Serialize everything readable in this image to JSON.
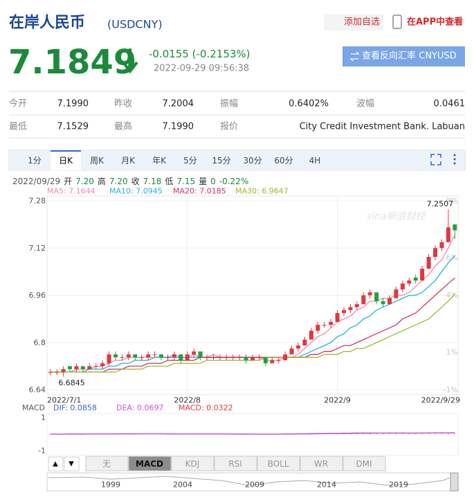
{
  "header": {
    "title": "在岸人民币",
    "code": "(USDCNY)",
    "add_watchlist": "添加自选",
    "app_view": "在APP中查看"
  },
  "quote": {
    "price": "7.1849",
    "change": "-0.0155 (-0.2153%)",
    "time": "2022-09-29 09:56:38",
    "reverse_button": "查看反向汇率 CNYUSD"
  },
  "stats": [
    [
      {
        "label": "今开",
        "value": "7.1990"
      },
      {
        "label": "昨收",
        "value": "7.2004"
      },
      {
        "label": "振幅",
        "value": "0.6402%"
      },
      {
        "label": "波幅",
        "value": "0.0461"
      }
    ],
    [
      {
        "label": "最低",
        "value": "7.1529"
      },
      {
        "label": "最高",
        "value": "7.1990"
      },
      {
        "label": "报价",
        "value": "City Credit Investment Bank. Labuan"
      }
    ]
  ],
  "period_tabs": {
    "items": [
      "1分",
      "日K",
      "周K",
      "月K",
      "年K",
      "5分",
      "15分",
      "30分",
      "60分",
      "4H"
    ],
    "active": 1
  },
  "info_bar": {
    "date": "2022/09/29",
    "items": [
      {
        "label": "开",
        "value": "7.20"
      },
      {
        "label": "高",
        "value": "7.20"
      },
      {
        "label": "收",
        "value": "7.18"
      },
      {
        "label": "低",
        "value": "7.15"
      },
      {
        "label": "量",
        "value": "0"
      }
    ],
    "change": "-0.22%"
  },
  "watermark": "sina新浪财经",
  "chart_data": [
    {
      "type": "candlestick",
      "categories": [
        "2022/7/1",
        null,
        null,
        null,
        null,
        null,
        null,
        null,
        null,
        null,
        null,
        null,
        null,
        null,
        null,
        null,
        null,
        null,
        null,
        null,
        null,
        "2022/8",
        null,
        null,
        null,
        null,
        null,
        null,
        null,
        null,
        null,
        null,
        null,
        null,
        null,
        null,
        null,
        null,
        null,
        null,
        null,
        null,
        null,
        null,
        "2022/9",
        null,
        null,
        null,
        null,
        null,
        null,
        null,
        null,
        null,
        null,
        null,
        null,
        null,
        null,
        null,
        null,
        null,
        "2022/9/29"
      ],
      "candles": [
        [
          6.7,
          6.71,
          6.69,
          6.7
        ],
        [
          6.7,
          6.71,
          6.69,
          6.7
        ],
        [
          6.7,
          6.72,
          6.6845,
          6.71
        ],
        [
          6.72,
          6.72,
          6.7,
          6.71
        ],
        [
          6.71,
          6.73,
          6.7,
          6.72
        ],
        [
          6.72,
          6.72,
          6.7,
          6.71
        ],
        [
          6.71,
          6.73,
          6.71,
          6.72
        ],
        [
          6.72,
          6.73,
          6.71,
          6.72
        ],
        [
          6.72,
          6.74,
          6.71,
          6.73
        ],
        [
          6.73,
          6.77,
          6.72,
          6.76
        ],
        [
          6.76,
          6.77,
          6.74,
          6.75
        ],
        [
          6.75,
          6.76,
          6.74,
          6.75
        ],
        [
          6.75,
          6.77,
          6.74,
          6.76
        ],
        [
          6.76,
          6.76,
          6.74,
          6.75
        ],
        [
          6.75,
          6.76,
          6.74,
          6.75
        ],
        [
          6.75,
          6.77,
          6.74,
          6.76
        ],
        [
          6.76,
          6.77,
          6.75,
          6.76
        ],
        [
          6.76,
          6.76,
          6.74,
          6.75
        ],
        [
          6.75,
          6.76,
          6.74,
          6.75
        ],
        [
          6.75,
          6.77,
          6.74,
          6.76
        ],
        [
          6.76,
          6.76,
          6.73,
          6.74
        ],
        [
          6.74,
          6.77,
          6.74,
          6.76
        ],
        [
          6.76,
          6.78,
          6.75,
          6.77
        ],
        [
          6.77,
          6.77,
          6.74,
          6.75
        ],
        [
          6.75,
          6.76,
          6.74,
          6.75
        ],
        [
          6.75,
          6.76,
          6.74,
          6.75
        ],
        [
          6.75,
          6.76,
          6.74,
          6.75
        ],
        [
          6.75,
          6.76,
          6.74,
          6.75
        ],
        [
          6.75,
          6.76,
          6.74,
          6.75
        ],
        [
          6.75,
          6.76,
          6.74,
          6.75
        ],
        [
          6.75,
          6.76,
          6.73,
          6.74
        ],
        [
          6.74,
          6.76,
          6.74,
          6.75
        ],
        [
          6.75,
          6.76,
          6.74,
          6.75
        ],
        [
          6.75,
          6.75,
          6.72,
          6.73
        ],
        [
          6.73,
          6.75,
          6.73,
          6.74
        ],
        [
          6.74,
          6.75,
          6.73,
          6.74
        ],
        [
          6.74,
          6.77,
          6.74,
          6.76
        ],
        [
          6.76,
          6.79,
          6.76,
          6.78
        ],
        [
          6.78,
          6.8,
          6.77,
          6.79
        ],
        [
          6.79,
          6.82,
          6.79,
          6.81
        ],
        [
          6.81,
          6.85,
          6.81,
          6.84
        ],
        [
          6.84,
          6.87,
          6.83,
          6.86
        ],
        [
          6.86,
          6.87,
          6.85,
          6.86
        ],
        [
          6.86,
          6.88,
          6.85,
          6.87
        ],
        [
          6.87,
          6.91,
          6.87,
          6.9
        ],
        [
          6.9,
          6.92,
          6.89,
          6.91
        ],
        [
          6.91,
          6.93,
          6.9,
          6.92
        ],
        [
          6.92,
          6.94,
          6.91,
          6.93
        ],
        [
          6.93,
          6.97,
          6.93,
          6.96
        ],
        [
          6.96,
          6.98,
          6.95,
          6.97
        ],
        [
          6.97,
          6.97,
          6.93,
          6.94
        ],
        [
          6.94,
          6.95,
          6.92,
          6.93
        ],
        [
          6.93,
          6.96,
          6.93,
          6.95
        ],
        [
          6.95,
          6.99,
          6.95,
          6.98
        ],
        [
          6.98,
          7.01,
          6.97,
          7.0
        ],
        [
          7.0,
          7.02,
          6.99,
          7.01
        ],
        [
          7.02,
          7.03,
          7.0,
          7.01
        ],
        [
          7.01,
          7.06,
          7.01,
          7.05
        ],
        [
          7.05,
          7.1,
          7.05,
          7.09
        ],
        [
          7.09,
          7.13,
          7.08,
          7.12
        ],
        [
          7.12,
          7.15,
          7.11,
          7.14
        ],
        [
          7.14,
          7.2507,
          7.14,
          7.19
        ],
        [
          7.2,
          7.2,
          7.15,
          7.18
        ]
      ],
      "up_color": "#e0383e",
      "down_color": "#1fa33a",
      "series": [
        {
          "name": "MA5: 7.1644",
          "color": "#ec8ab0",
          "values": [
            6.7,
            6.7,
            6.7,
            6.7,
            6.71,
            6.71,
            6.71,
            6.72,
            6.72,
            6.73,
            6.74,
            6.74,
            6.75,
            6.75,
            6.75,
            6.75,
            6.75,
            6.75,
            6.75,
            6.76,
            6.75,
            6.75,
            6.76,
            6.75,
            6.75,
            6.76,
            6.75,
            6.75,
            6.75,
            6.75,
            6.75,
            6.75,
            6.75,
            6.74,
            6.74,
            6.74,
            6.75,
            6.75,
            6.76,
            6.78,
            6.8,
            6.82,
            6.83,
            6.85,
            6.87,
            6.88,
            6.89,
            6.91,
            6.92,
            6.94,
            6.94,
            6.95,
            6.95,
            6.96,
            6.96,
            6.97,
            6.99,
            7.01,
            7.03,
            7.06,
            7.08,
            7.12,
            7.1644
          ]
        },
        {
          "name": "MA10: 7.0945",
          "color": "#23b4d2",
          "values": [
            6.7,
            6.7,
            6.7,
            6.7,
            6.7,
            6.7,
            6.71,
            6.71,
            6.71,
            6.72,
            6.72,
            6.73,
            6.73,
            6.74,
            6.74,
            6.74,
            6.75,
            6.75,
            6.75,
            6.75,
            6.75,
            6.75,
            6.75,
            6.75,
            6.75,
            6.75,
            6.75,
            6.75,
            6.75,
            6.75,
            6.75,
            6.75,
            6.75,
            6.75,
            6.75,
            6.75,
            6.75,
            6.75,
            6.75,
            6.76,
            6.77,
            6.78,
            6.79,
            6.8,
            6.82,
            6.83,
            6.85,
            6.86,
            6.88,
            6.89,
            6.91,
            6.92,
            6.93,
            6.94,
            6.95,
            6.96,
            6.96,
            6.97,
            6.99,
            7.01,
            7.04,
            7.07,
            7.0945
          ]
        },
        {
          "name": "MA20: 7.0185",
          "color": "#d42f6a",
          "values": [
            6.7,
            6.7,
            6.7,
            6.7,
            6.7,
            6.7,
            6.7,
            6.7,
            6.7,
            6.71,
            6.71,
            6.71,
            6.72,
            6.72,
            6.72,
            6.73,
            6.73,
            6.73,
            6.74,
            6.74,
            6.74,
            6.74,
            6.74,
            6.75,
            6.75,
            6.75,
            6.75,
            6.75,
            6.75,
            6.75,
            6.75,
            6.75,
            6.75,
            6.75,
            6.75,
            6.75,
            6.75,
            6.75,
            6.75,
            6.75,
            6.76,
            6.76,
            6.77,
            6.77,
            6.78,
            6.79,
            6.79,
            6.8,
            6.81,
            6.82,
            6.83,
            6.84,
            6.85,
            6.86,
            6.88,
            6.89,
            6.9,
            6.92,
            6.94,
            6.96,
            6.98,
            7.0,
            7.0185
          ]
        },
        {
          "name": "MA30: 6.9647",
          "color": "#9cba2c",
          "values": [
            6.7,
            6.7,
            6.7,
            6.7,
            6.7,
            6.7,
            6.7,
            6.7,
            6.7,
            6.7,
            6.7,
            6.71,
            6.71,
            6.71,
            6.71,
            6.72,
            6.72,
            6.72,
            6.72,
            6.73,
            6.73,
            6.73,
            6.73,
            6.73,
            6.74,
            6.74,
            6.74,
            6.74,
            6.74,
            6.74,
            6.74,
            6.74,
            6.74,
            6.75,
            6.75,
            6.75,
            6.75,
            6.75,
            6.75,
            6.75,
            6.75,
            6.75,
            6.76,
            6.76,
            6.76,
            6.77,
            6.77,
            6.78,
            6.78,
            6.79,
            6.8,
            6.81,
            6.82,
            6.83,
            6.84,
            6.85,
            6.86,
            6.87,
            6.88,
            6.9,
            6.92,
            6.94,
            6.9647
          ]
        }
      ],
      "ylim": [
        6.64,
        7.28
      ],
      "yticks": [
        6.64,
        6.8,
        6.96,
        7.12,
        7.28
      ],
      "y2lim": [
        -1,
        9
      ],
      "y2ticks": [
        {
          "value": -1,
          "label": "-1%"
        },
        {
          "value": 1,
          "label": "1%"
        },
        {
          "value": 4,
          "label": "4%"
        },
        {
          "value": 6,
          "label": "6%"
        },
        {
          "value": 9,
          "label": "9%"
        }
      ],
      "grid": true
    },
    {
      "type": "macd",
      "title": "MACD",
      "series": [
        {
          "name": "DIF: 0.0858",
          "color": "#3f5fd8",
          "values": [
            0,
            0,
            0,
            0.01,
            0.01,
            0.01,
            0.01,
            0.01,
            0.01,
            0.01,
            0.02,
            0.02,
            0.02,
            0.02,
            0.02,
            0.02,
            0.02,
            0.02,
            0.01,
            0.01,
            0.01,
            0.01,
            0.01,
            0.01,
            0.01,
            0.01,
            0.01,
            0.01,
            0,
            0,
            0,
            0,
            0,
            0,
            0,
            0,
            0.01,
            0.01,
            0.02,
            0.02,
            0.03,
            0.04,
            0.04,
            0.05,
            0.05,
            0.06,
            0.06,
            0.07,
            0.07,
            0.07,
            0.07,
            0.07,
            0.07,
            0.07,
            0.07,
            0.07,
            0.07,
            0.07,
            0.07,
            0.08,
            0.08,
            0.08,
            0.0858
          ]
        },
        {
          "name": "DEA: 0.0697",
          "color": "#d84ae0",
          "values": [
            0,
            0,
            0,
            0,
            0,
            0,
            0.01,
            0.01,
            0.01,
            0.01,
            0.01,
            0.01,
            0.01,
            0.01,
            0.02,
            0.02,
            0.02,
            0.02,
            0.02,
            0.02,
            0.01,
            0.01,
            0.01,
            0.01,
            0.01,
            0.01,
            0.01,
            0.01,
            0.01,
            0.01,
            0.01,
            0,
            0,
            0,
            0,
            0,
            0,
            0,
            0.01,
            0.01,
            0.01,
            0.02,
            0.02,
            0.03,
            0.03,
            0.04,
            0.04,
            0.05,
            0.05,
            0.05,
            0.06,
            0.06,
            0.06,
            0.06,
            0.06,
            0.06,
            0.06,
            0.07,
            0.07,
            0.07,
            0.07,
            0.07,
            0.0697
          ]
        }
      ],
      "bars": {
        "name": "MACD: 0.0322",
        "up_color": "#e0383e",
        "down_color": "#1fa33a",
        "values": [
          -0.01,
          -0.01,
          -0.01,
          -0.01,
          -0.01,
          -0.01,
          -0.01,
          -0.01,
          -0.01,
          -0.01,
          -0.01,
          -0.01,
          -0.01,
          -0.01,
          -0.01,
          -0.01,
          -0.01,
          -0.01,
          -0.01,
          -0.01,
          -0.01,
          -0.01,
          -0.01,
          -0.01,
          -0.01,
          -0.01,
          -0.01,
          -0.01,
          -0.01,
          -0.01,
          -0.01,
          -0.01,
          -0.01,
          -0.01,
          -0.01,
          -0.01,
          0.01,
          0.01,
          0.02,
          0.02,
          0.03,
          0.03,
          0.04,
          0.04,
          0.04,
          0.04,
          0.04,
          0.04,
          0.04,
          0.04,
          0.03,
          0.03,
          0.03,
          0.03,
          0.03,
          0.03,
          0.03,
          0.03,
          0.03,
          0.03,
          0.03,
          0.03,
          0.0322
        ]
      },
      "ylim": [
        -1.25,
        1.25
      ],
      "yticks": [
        -1,
        1
      ]
    }
  ],
  "indicator_tabs": {
    "arrows": [
      "▲",
      "▼"
    ],
    "items": [
      "无",
      "MACD",
      "KDJ",
      "RSI",
      "BOLL",
      "WR",
      "DMI"
    ],
    "active": 1
  },
  "navigator_years": [
    "1999",
    "2004",
    "2009",
    "2014",
    "2019"
  ]
}
